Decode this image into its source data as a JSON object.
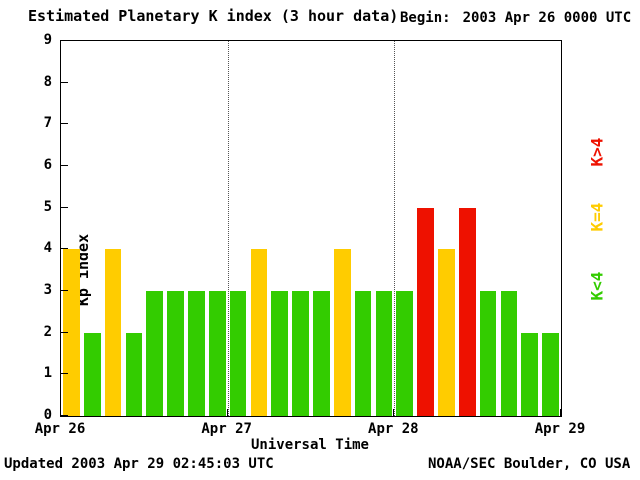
{
  "header": {
    "title": "Estimated Planetary K index (3 hour data)",
    "begin_label": "Begin:",
    "begin_value": "2003 Apr 26 0000 UTC"
  },
  "footer": {
    "updated": "Updated 2003 Apr 29 02:45:03 UTC",
    "source": "NOAA/SEC Boulder, CO USA"
  },
  "legend": [
    {
      "label": "K>4",
      "color": "#ee1100"
    },
    {
      "label": "K=4",
      "color": "#ffcc00"
    },
    {
      "label": "K<4",
      "color": "#33cc00"
    }
  ],
  "chart_data": {
    "type": "bar",
    "title": "Estimated Planetary K index (3 hour data)",
    "xlabel": "Universal Time",
    "ylabel": "Kp index",
    "ylim": [
      0,
      9
    ],
    "yticks": [
      0,
      1,
      2,
      3,
      4,
      5,
      6,
      7,
      8,
      9
    ],
    "xticks": [
      "Apr 26",
      "Apr 27",
      "Apr 28",
      "Apr 29"
    ],
    "bars_per_day": 8,
    "hours_per_bar": 3,
    "values": [
      4,
      2,
      4,
      2,
      3,
      3,
      3,
      3,
      3,
      4,
      3,
      3,
      3,
      4,
      3,
      3,
      3,
      5,
      4,
      5,
      3,
      3,
      2,
      2
    ],
    "colors": {
      "low": "#33cc00",
      "mid": "#ffcc00",
      "high": "#ee1100"
    },
    "color_rule": "green if K<4, yellow if K=4, red if K>4",
    "grid": "vertical dotted lines at day boundaries",
    "legend_position": "right"
  }
}
